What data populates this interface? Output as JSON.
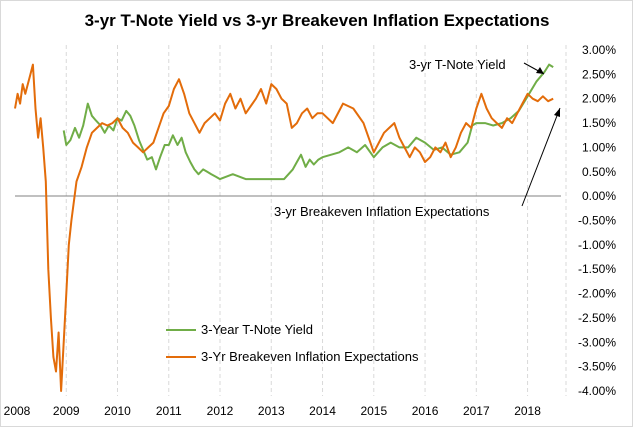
{
  "chart_data": {
    "type": "line",
    "title": "3-yr T-Note Yield vs 3-yr Breakeven Inflation Expectations",
    "xlabel": "",
    "ylabel": "",
    "xlim": [
      2008.0,
      2018.75
    ],
    "ylim": [
      -4.0,
      3.0
    ],
    "x_ticks": [
      "2008",
      "2009",
      "2010",
      "2011",
      "2012",
      "2013",
      "2014",
      "2015",
      "2016",
      "2017",
      "2018"
    ],
    "y_ticks": [
      "3.00%",
      "2.50%",
      "2.00%",
      "1.50%",
      "1.00%",
      "0.50%",
      "0.00%",
      "-0.50%",
      "-1.00%",
      "-1.50%",
      "-2.00%",
      "-2.50%",
      "-3.00%",
      "-3.50%",
      "-4.00%"
    ],
    "grid": "vertical dashed",
    "legend_position": "bottom-left",
    "series": [
      {
        "name": "3-Year T-Note Yield",
        "color": "#70ad47",
        "x": [
          2008.95,
          2009.0,
          2009.08,
          2009.17,
          2009.25,
          2009.33,
          2009.42,
          2009.5,
          2009.58,
          2009.67,
          2009.75,
          2009.83,
          2009.92,
          2010.0,
          2010.08,
          2010.17,
          2010.25,
          2010.33,
          2010.42,
          2010.5,
          2010.58,
          2010.67,
          2010.75,
          2010.83,
          2010.92,
          2011.0,
          2011.08,
          2011.17,
          2011.25,
          2011.33,
          2011.42,
          2011.5,
          2011.58,
          2011.67,
          2011.75,
          2011.83,
          2011.92,
          2012.0,
          2012.25,
          2012.5,
          2012.75,
          2013.0,
          2013.25,
          2013.42,
          2013.5,
          2013.58,
          2013.67,
          2013.75,
          2013.83,
          2013.92,
          2014.0,
          2014.17,
          2014.33,
          2014.5,
          2014.67,
          2014.83,
          2015.0,
          2015.17,
          2015.33,
          2015.5,
          2015.67,
          2015.83,
          2016.0,
          2016.17,
          2016.33,
          2016.5,
          2016.67,
          2016.83,
          2016.92,
          2017.0,
          2017.17,
          2017.33,
          2017.5,
          2017.67,
          2017.83,
          2018.0,
          2018.17,
          2018.33,
          2018.42,
          2018.5
        ],
        "y": [
          1.35,
          1.05,
          1.15,
          1.4,
          1.2,
          1.45,
          1.9,
          1.65,
          1.55,
          1.45,
          1.3,
          1.45,
          1.35,
          1.6,
          1.55,
          1.75,
          1.65,
          1.45,
          1.15,
          0.95,
          0.75,
          0.8,
          0.55,
          0.8,
          1.05,
          1.05,
          1.25,
          1.05,
          1.2,
          0.9,
          0.7,
          0.55,
          0.45,
          0.55,
          0.5,
          0.45,
          0.4,
          0.35,
          0.45,
          0.35,
          0.35,
          0.35,
          0.35,
          0.55,
          0.7,
          0.85,
          0.6,
          0.75,
          0.65,
          0.75,
          0.8,
          0.85,
          0.9,
          1.0,
          0.9,
          1.05,
          0.8,
          1.0,
          1.1,
          1.0,
          1.0,
          1.2,
          1.1,
          0.95,
          1.0,
          0.85,
          0.9,
          1.1,
          1.45,
          1.5,
          1.5,
          1.45,
          1.5,
          1.6,
          1.75,
          2.05,
          2.35,
          2.55,
          2.7,
          2.65
        ]
      },
      {
        "name": "3-Yr Breakeven Inflation Expectations",
        "color": "#e36c0a",
        "x": [
          2008.0,
          2008.05,
          2008.1,
          2008.15,
          2008.2,
          2008.3,
          2008.35,
          2008.4,
          2008.45,
          2008.5,
          2008.55,
          2008.6,
          2008.65,
          2008.7,
          2008.75,
          2008.8,
          2008.85,
          2008.9,
          2008.95,
          2009.0,
          2009.05,
          2009.1,
          2009.2,
          2009.3,
          2009.4,
          2009.5,
          2009.6,
          2009.7,
          2009.8,
          2009.9,
          2010.0,
          2010.1,
          2010.2,
          2010.3,
          2010.4,
          2010.5,
          2010.6,
          2010.7,
          2010.8,
          2010.9,
          2011.0,
          2011.1,
          2011.2,
          2011.3,
          2011.4,
          2011.5,
          2011.6,
          2011.7,
          2011.8,
          2011.9,
          2012.0,
          2012.1,
          2012.2,
          2012.3,
          2012.4,
          2012.5,
          2012.6,
          2012.7,
          2012.8,
          2012.9,
          2013.0,
          2013.1,
          2013.2,
          2013.3,
          2013.4,
          2013.5,
          2013.6,
          2013.7,
          2013.8,
          2013.9,
          2014.0,
          2014.2,
          2014.4,
          2014.6,
          2014.8,
          2015.0,
          2015.1,
          2015.2,
          2015.3,
          2015.4,
          2015.5,
          2015.6,
          2015.7,
          2015.8,
          2015.9,
          2016.0,
          2016.1,
          2016.2,
          2016.3,
          2016.4,
          2016.5,
          2016.6,
          2016.7,
          2016.8,
          2016.9,
          2017.0,
          2017.1,
          2017.2,
          2017.3,
          2017.4,
          2017.5,
          2017.6,
          2017.7,
          2017.8,
          2017.9,
          2018.0,
          2018.1,
          2018.2,
          2018.3,
          2018.4,
          2018.5
        ],
        "y": [
          1.8,
          2.1,
          1.9,
          2.3,
          2.1,
          2.5,
          2.7,
          1.8,
          1.2,
          1.6,
          1.0,
          0.3,
          -1.5,
          -2.5,
          -3.3,
          -3.6,
          -2.8,
          -4.0,
          -3.0,
          -2.0,
          -1.0,
          -0.5,
          0.3,
          0.6,
          1.0,
          1.3,
          1.4,
          1.5,
          1.45,
          1.5,
          1.6,
          1.4,
          1.3,
          1.1,
          1.0,
          0.9,
          1.0,
          1.1,
          1.4,
          1.7,
          1.85,
          2.2,
          2.4,
          2.1,
          1.7,
          1.5,
          1.3,
          1.5,
          1.6,
          1.7,
          1.55,
          1.9,
          2.1,
          1.8,
          2.0,
          1.7,
          1.85,
          2.0,
          2.2,
          1.9,
          2.3,
          2.2,
          2.0,
          1.9,
          1.4,
          1.5,
          1.7,
          1.8,
          1.6,
          1.7,
          1.7,
          1.5,
          1.9,
          1.8,
          1.5,
          0.9,
          1.1,
          1.3,
          1.4,
          1.5,
          1.2,
          1.0,
          0.8,
          1.0,
          0.9,
          0.7,
          0.8,
          1.0,
          0.9,
          1.1,
          0.8,
          1.0,
          1.3,
          1.5,
          1.4,
          1.8,
          2.1,
          1.8,
          1.6,
          1.5,
          1.4,
          1.6,
          1.5,
          1.7,
          1.9,
          2.1,
          2.0,
          1.95,
          2.05,
          1.95,
          2.0
        ]
      }
    ],
    "annotations": [
      {
        "text": "3-yr T-Note Yield"
      },
      {
        "text": "3-yr Breakeven Inflation Expectations"
      }
    ]
  }
}
